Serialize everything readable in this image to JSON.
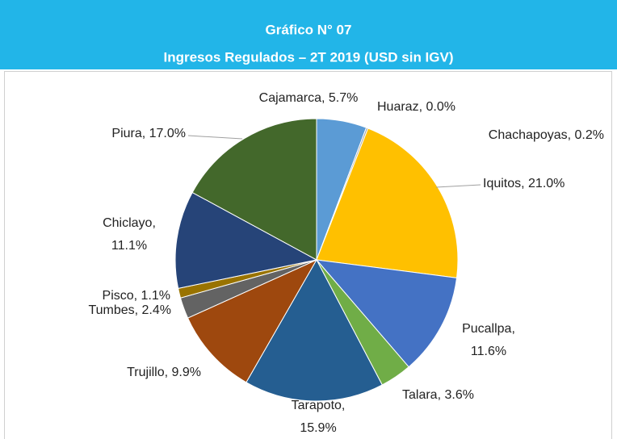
{
  "chart_data": {
    "type": "pie",
    "title": "Gráfico N° 07",
    "subtitle": "Ingresos Regulados – 2T 2019 (USD sin IGV)",
    "categories": [
      "Cajamarca",
      "Huaraz",
      "Chachapoyas",
      "Iquitos",
      "Pucallpa",
      "Talara",
      "Tarapoto",
      "Trujillo",
      "Tumbes",
      "Pisco",
      "Chiclayo",
      "Piura"
    ],
    "values": [
      5.7,
      0.0,
      0.2,
      21.0,
      11.6,
      3.6,
      15.9,
      9.9,
      2.4,
      1.1,
      11.1,
      17.0
    ],
    "value_labels": [
      "Cajamarca, 5.7%",
      "Huaraz, 0.0%",
      "Chachapoyas, 0.2%",
      "Iquitos, 21.0%",
      "Pucallpa, 11.6%",
      "Talara, 3.6%",
      "Tarapoto, 15.9%",
      "Trujillo, 9.9%",
      "Tumbes, 2.4%",
      "Pisco, 1.1%",
      "Chiclayo, 11.1%",
      "Piura, 17.0%"
    ],
    "colors": [
      "#5b9bd5",
      "#ed7d31",
      "#a5a5a5",
      "#ffc000",
      "#4472c4",
      "#70ad47",
      "#255e91",
      "#9e480e",
      "#636363",
      "#997300",
      "#264478",
      "#43682b"
    ]
  }
}
